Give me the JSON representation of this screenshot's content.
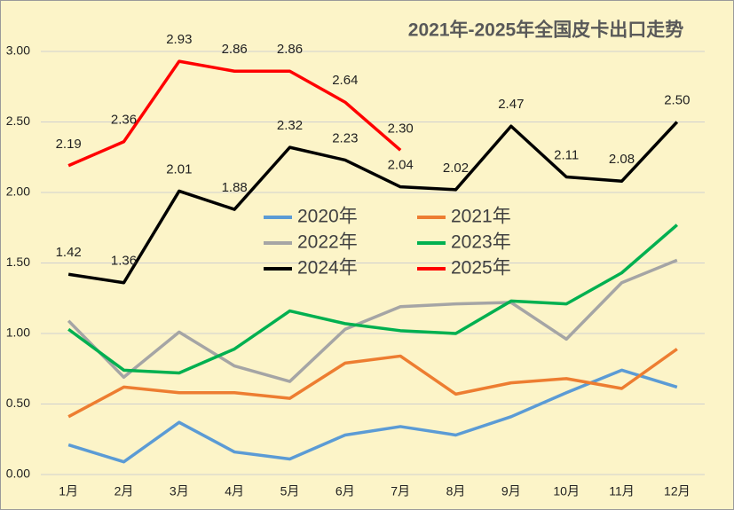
{
  "chart_data": {
    "type": "line",
    "title": "2021年-2025年全国皮卡出口走势",
    "categories": [
      "1月",
      "2月",
      "3月",
      "4月",
      "5月",
      "6月",
      "7月",
      "8月",
      "9月",
      "10月",
      "11月",
      "12月"
    ],
    "ylim": [
      0,
      3
    ],
    "yticks": [
      {
        "value": 0,
        "label": "0.00"
      },
      {
        "value": 0.5,
        "label": "0.50"
      },
      {
        "value": 1,
        "label": "1.00"
      },
      {
        "value": 1.5,
        "label": "1.50"
      },
      {
        "value": 2,
        "label": "2.00"
      },
      {
        "value": 2.5,
        "label": "2.50"
      },
      {
        "value": 3,
        "label": "3.00"
      }
    ],
    "grid": true,
    "series": [
      {
        "name": "2020年",
        "color": "#5b9bd5",
        "values": [
          0.21,
          0.09,
          0.37,
          0.16,
          0.11,
          0.28,
          0.34,
          0.28,
          0.41,
          0.58,
          0.74,
          0.62
        ]
      },
      {
        "name": "2021年",
        "color": "#ed7d31",
        "values": [
          0.41,
          0.62,
          0.58,
          0.58,
          0.54,
          0.79,
          0.84,
          0.57,
          0.65,
          0.68,
          0.61,
          0.89
        ]
      },
      {
        "name": "2022年",
        "color": "#a5a5a5",
        "values": [
          1.09,
          0.69,
          1.01,
          0.77,
          0.66,
          1.03,
          1.19,
          1.21,
          1.22,
          0.96,
          1.36,
          1.52
        ]
      },
      {
        "name": "2023年",
        "color": "#00b050",
        "values": [
          1.03,
          0.74,
          0.72,
          0.89,
          1.16,
          1.07,
          1.02,
          1.0,
          1.23,
          1.21,
          1.43,
          1.77
        ]
      },
      {
        "name": "2024年",
        "color": "#000000",
        "values": [
          1.42,
          1.36,
          2.01,
          1.88,
          2.32,
          2.23,
          2.04,
          2.02,
          2.47,
          2.11,
          2.08,
          2.5
        ],
        "value_labels": [
          "1.42",
          "1.36",
          "2.01",
          "1.88",
          "2.32",
          "2.23",
          "2.04",
          "2.02",
          "2.47",
          "2.11",
          "2.08",
          "2.50"
        ]
      },
      {
        "name": "2025年",
        "color": "#ff0000",
        "values": [
          2.19,
          2.36,
          2.93,
          2.86,
          2.86,
          2.64,
          2.3,
          null,
          null,
          null,
          null,
          null
        ],
        "value_labels": [
          "2.19",
          "2.36",
          "2.93",
          "2.86",
          "2.86",
          "2.64",
          "2.30",
          null,
          null,
          null,
          null,
          null
        ]
      }
    ]
  }
}
